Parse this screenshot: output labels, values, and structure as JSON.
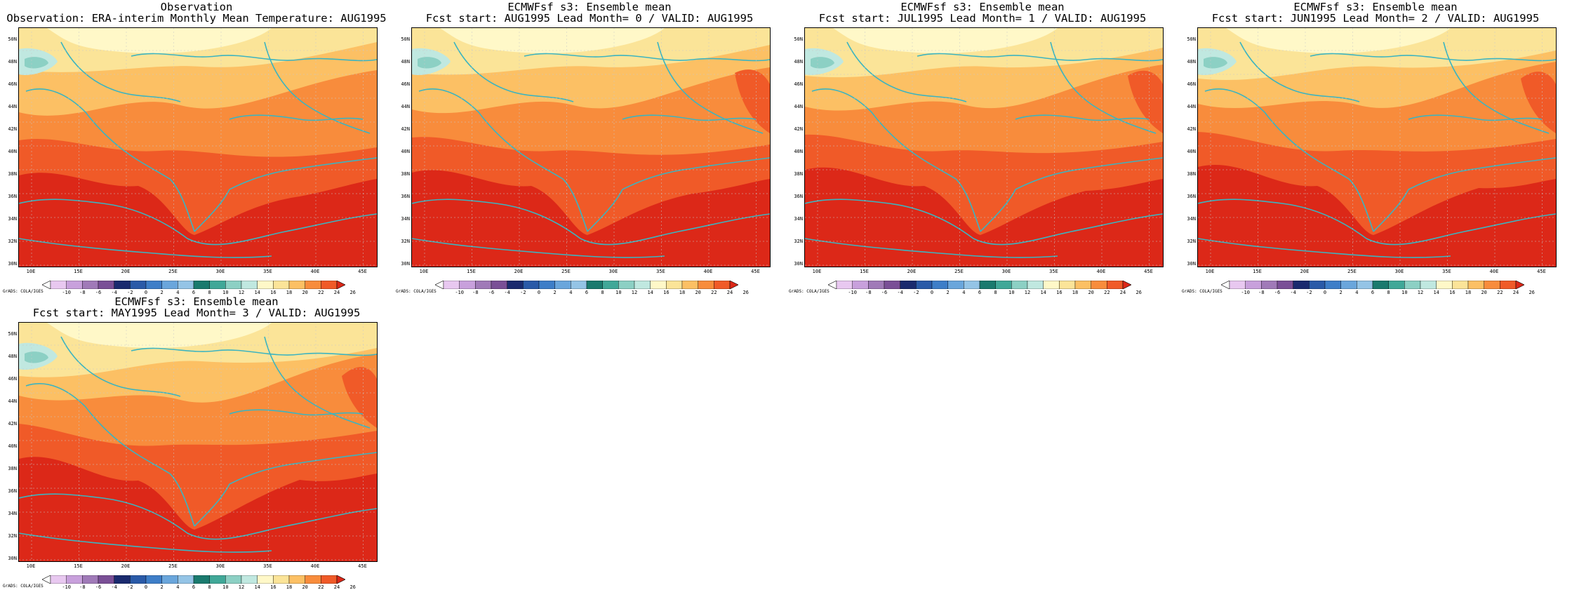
{
  "panels": [
    {
      "title1": "Observation",
      "title2": "Observation: ERA-interim Monthly Mean Temperature: AUG1995",
      "variant": 0
    },
    {
      "title1": "ECMWFsf s3: Ensemble mean",
      "title2": "Fcst start: AUG1995  Lead Month= 0 / VALID: AUG1995",
      "variant": 1
    },
    {
      "title1": "ECMWFsf s3: Ensemble mean",
      "title2": "Fcst start: JUL1995  Lead Month= 1 / VALID: AUG1995",
      "variant": 2
    },
    {
      "title1": "ECMWFsf s3: Ensemble mean",
      "title2": "Fcst start: JUN1995  Lead Month= 2 / VALID: AUG1995",
      "variant": 3
    },
    {
      "title1": "ECMWFsf s3: Ensemble mean",
      "title2": "Fcst start: MAY1995  Lead Month= 3 / VALID: AUG1995",
      "variant": 4
    }
  ],
  "lat_labels": [
    "50N",
    "48N",
    "46N",
    "44N",
    "42N",
    "40N",
    "38N",
    "36N",
    "34N",
    "32N",
    "30N"
  ],
  "lon_labels": [
    "10E",
    "15E",
    "20E",
    "25E",
    "30E",
    "35E",
    "40E",
    "45E"
  ],
  "colorbar": {
    "labels": [
      "-10",
      "-8",
      "-6",
      "-4",
      "-2",
      "0",
      "2",
      "4",
      "6",
      "8",
      "10",
      "12",
      "14",
      "16",
      "18",
      "20",
      "22",
      "24",
      "26"
    ],
    "colors": [
      "#ffffff",
      "#e8c8f0",
      "#c8a0dc",
      "#a07ab8",
      "#7a4f96",
      "#1a2a6e",
      "#2a5aa8",
      "#3e7ec8",
      "#6aa6dc",
      "#94c4e6",
      "#1a7a6e",
      "#40a898",
      "#8cd0c4",
      "#c0e8e0",
      "#fff8c8",
      "#fbe498",
      "#fcc064",
      "#f88c3c",
      "#f05a28",
      "#dc2818"
    ],
    "coast_color": "#3cb4c0"
  },
  "footer": "GrADS: COLA/IGES"
}
